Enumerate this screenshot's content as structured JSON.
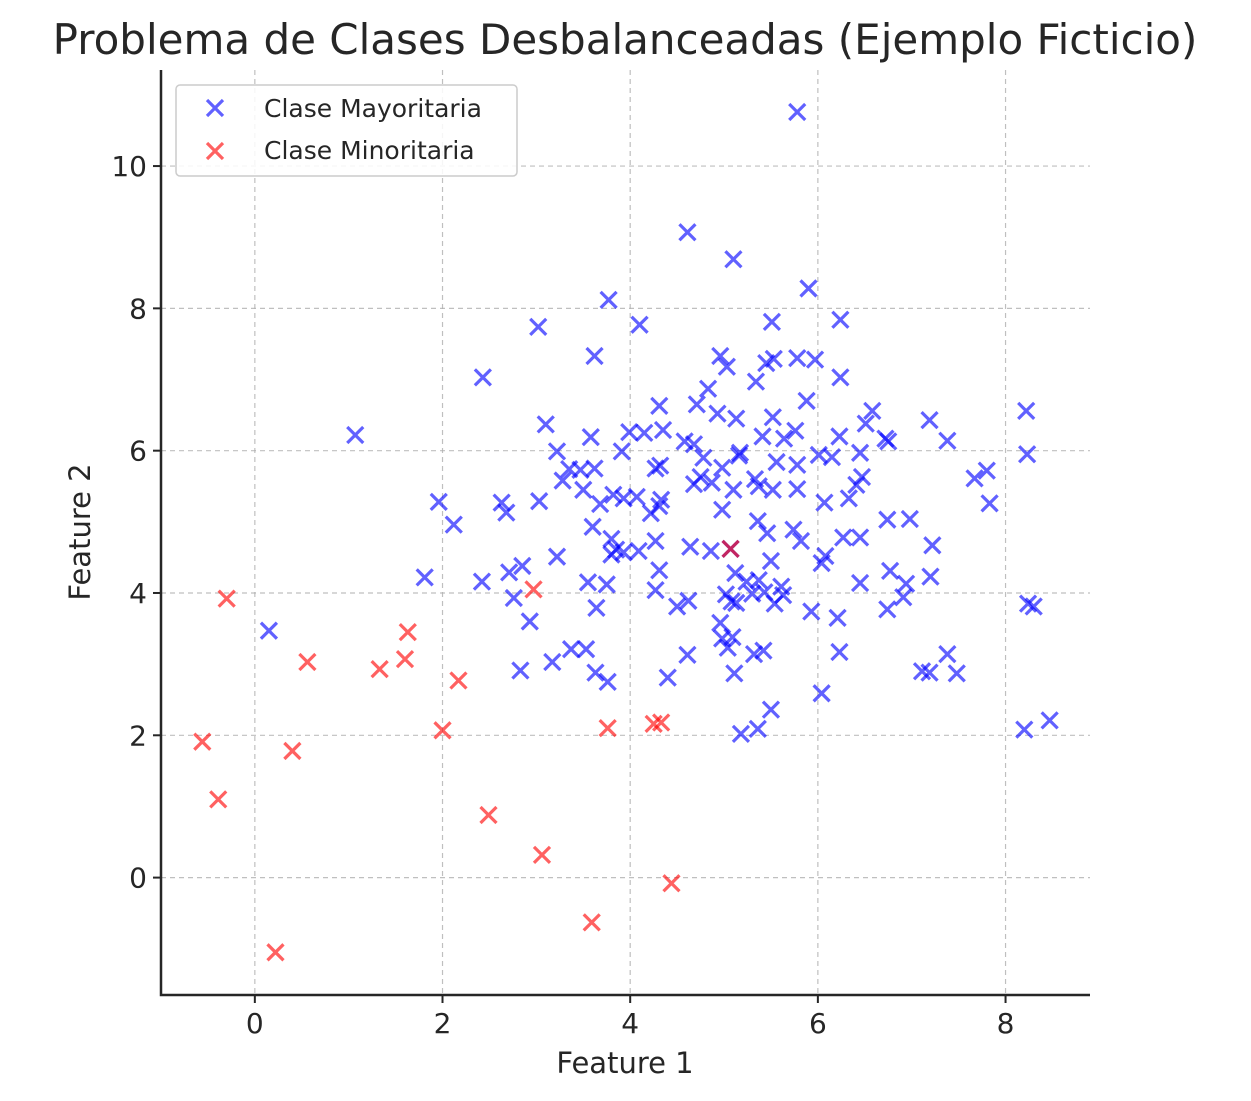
{
  "chart_data": {
    "type": "scatter",
    "title": "Problema de Clases Desbalanceadas (Ejemplo Ficticio)",
    "xlabel": "Feature 1",
    "ylabel": "Feature 2",
    "xlim": [
      -1.0,
      8.9
    ],
    "ylim": [
      -1.65,
      11.35
    ],
    "xticks": [
      0,
      2,
      4,
      6,
      8
    ],
    "yticks": [
      0,
      2,
      4,
      6,
      8,
      10
    ],
    "grid": true,
    "legend_position": "top-left",
    "marker": "x",
    "series": [
      {
        "name": "Clase Mayoritaria",
        "color": "#0000ff",
        "points": [
          [
            5.78,
            10.76
          ],
          [
            4.61,
            9.07
          ],
          [
            5.1,
            8.69
          ],
          [
            3.77,
            8.12
          ],
          [
            5.9,
            8.28
          ],
          [
            3.02,
            7.74
          ],
          [
            4.1,
            7.77
          ],
          [
            5.51,
            7.81
          ],
          [
            6.24,
            7.84
          ],
          [
            2.43,
            7.03
          ],
          [
            3.62,
            7.33
          ],
          [
            4.96,
            7.33
          ],
          [
            5.03,
            7.18
          ],
          [
            5.45,
            7.23
          ],
          [
            5.53,
            7.29
          ],
          [
            5.78,
            7.3
          ],
          [
            5.97,
            7.28
          ],
          [
            6.24,
            7.03
          ],
          [
            5.34,
            6.97
          ],
          [
            4.83,
            6.87
          ],
          [
            4.31,
            6.63
          ],
          [
            4.71,
            6.65
          ],
          [
            4.93,
            6.52
          ],
          [
            5.13,
            6.45
          ],
          [
            5.52,
            6.47
          ],
          [
            5.88,
            6.7
          ],
          [
            6.58,
            6.56
          ],
          [
            7.19,
            6.43
          ],
          [
            8.22,
            6.56
          ],
          [
            1.07,
            6.22
          ],
          [
            3.1,
            6.37
          ],
          [
            3.58,
            6.19
          ],
          [
            3.99,
            6.26
          ],
          [
            4.15,
            6.25
          ],
          [
            4.35,
            6.29
          ],
          [
            4.58,
            6.13
          ],
          [
            4.68,
            6.09
          ],
          [
            5.17,
            5.97
          ],
          [
            5.41,
            6.2
          ],
          [
            5.76,
            6.28
          ],
          [
            5.64,
            6.17
          ],
          [
            6.23,
            6.2
          ],
          [
            6.51,
            6.38
          ],
          [
            6.72,
            6.17
          ],
          [
            6.75,
            6.13
          ],
          [
            7.38,
            6.14
          ],
          [
            3.22,
            5.99
          ],
          [
            3.35,
            5.74
          ],
          [
            3.47,
            5.73
          ],
          [
            3.62,
            5.75
          ],
          [
            3.91,
            5.99
          ],
          [
            4.27,
            5.75
          ],
          [
            4.32,
            5.79
          ],
          [
            4.78,
            5.9
          ],
          [
            4.98,
            5.76
          ],
          [
            5.16,
            5.93
          ],
          [
            5.33,
            5.6
          ],
          [
            5.56,
            5.84
          ],
          [
            5.78,
            5.8
          ],
          [
            6.01,
            5.94
          ],
          [
            6.15,
            5.91
          ],
          [
            6.45,
            5.97
          ],
          [
            8.23,
            5.95
          ],
          [
            3.28,
            5.58
          ],
          [
            3.5,
            5.45
          ],
          [
            3.68,
            5.25
          ],
          [
            3.82,
            5.38
          ],
          [
            3.93,
            5.33
          ],
          [
            4.07,
            5.35
          ],
          [
            4.22,
            5.12
          ],
          [
            4.33,
            5.31
          ],
          [
            4.68,
            5.53
          ],
          [
            4.75,
            5.63
          ],
          [
            4.87,
            5.55
          ],
          [
            5.1,
            5.45
          ],
          [
            5.37,
            5.5
          ],
          [
            5.52,
            5.45
          ],
          [
            5.78,
            5.46
          ],
          [
            6.07,
            5.27
          ],
          [
            6.33,
            5.33
          ],
          [
            6.41,
            5.52
          ],
          [
            6.47,
            5.63
          ],
          [
            7.67,
            5.61
          ],
          [
            7.8,
            5.72
          ],
          [
            7.83,
            5.26
          ],
          [
            1.96,
            5.28
          ],
          [
            2.12,
            4.96
          ],
          [
            2.63,
            5.27
          ],
          [
            2.68,
            5.13
          ],
          [
            3.03,
            5.29
          ],
          [
            3.6,
            4.93
          ],
          [
            3.8,
            4.76
          ],
          [
            3.85,
            4.61
          ],
          [
            4.27,
            4.73
          ],
          [
            4.31,
            5.22
          ],
          [
            4.98,
            5.17
          ],
          [
            5.07,
            4.62
          ],
          [
            5.36,
            5.01
          ],
          [
            5.46,
            4.84
          ],
          [
            5.74,
            4.89
          ],
          [
            5.82,
            4.73
          ],
          [
            6.08,
            4.52
          ],
          [
            6.27,
            4.78
          ],
          [
            6.45,
            4.78
          ],
          [
            6.74,
            5.03
          ],
          [
            6.98,
            5.04
          ],
          [
            7.22,
            4.67
          ],
          [
            2.71,
            4.29
          ],
          [
            2.85,
            4.38
          ],
          [
            3.22,
            4.51
          ],
          [
            3.55,
            4.15
          ],
          [
            3.64,
            3.79
          ],
          [
            3.75,
            4.12
          ],
          [
            3.8,
            4.54
          ],
          [
            3.93,
            4.57
          ],
          [
            4.09,
            4.59
          ],
          [
            4.31,
            4.32
          ],
          [
            4.64,
            4.65
          ],
          [
            4.86,
            4.59
          ],
          [
            5.12,
            4.28
          ],
          [
            5.24,
            4.16
          ],
          [
            5.37,
            4.18
          ],
          [
            5.5,
            4.45
          ],
          [
            5.61,
            4.09
          ],
          [
            6.04,
            4.42
          ],
          [
            6.45,
            4.14
          ],
          [
            6.77,
            4.31
          ],
          [
            6.94,
            4.13
          ],
          [
            7.2,
            4.23
          ],
          [
            1.81,
            4.22
          ],
          [
            2.42,
            4.16
          ],
          [
            2.76,
            3.93
          ],
          [
            2.93,
            3.6
          ],
          [
            3.37,
            3.21
          ],
          [
            3.53,
            3.21
          ],
          [
            4.27,
            4.04
          ],
          [
            4.5,
            3.81
          ],
          [
            4.62,
            3.89
          ],
          [
            5.02,
            3.98
          ],
          [
            5.08,
            3.88
          ],
          [
            5.13,
            3.86
          ],
          [
            5.3,
            3.99
          ],
          [
            5.43,
            4.01
          ],
          [
            5.54,
            3.85
          ],
          [
            5.63,
            3.97
          ],
          [
            5.93,
            3.74
          ],
          [
            6.21,
            3.65
          ],
          [
            6.74,
            3.77
          ],
          [
            6.91,
            3.94
          ],
          [
            8.24,
            3.85
          ],
          [
            8.3,
            3.81
          ],
          [
            0.15,
            3.47
          ],
          [
            2.83,
            2.91
          ],
          [
            3.17,
            3.03
          ],
          [
            3.63,
            2.88
          ],
          [
            3.76,
            2.75
          ],
          [
            4.4,
            2.81
          ],
          [
            4.61,
            3.13
          ],
          [
            4.96,
            3.58
          ],
          [
            4.98,
            3.36
          ],
          [
            5.04,
            3.23
          ],
          [
            5.09,
            3.38
          ],
          [
            5.11,
            2.87
          ],
          [
            5.32,
            3.14
          ],
          [
            5.42,
            3.19
          ],
          [
            6.23,
            3.17
          ],
          [
            7.11,
            2.9
          ],
          [
            7.38,
            3.14
          ],
          [
            7.19,
            2.88
          ],
          [
            7.48,
            2.87
          ],
          [
            5.18,
            2.02
          ],
          [
            5.36,
            2.09
          ],
          [
            5.5,
            2.36
          ],
          [
            6.04,
            2.59
          ],
          [
            8.2,
            2.08
          ],
          [
            8.47,
            2.21
          ]
        ]
      },
      {
        "name": "Clase Minoritaria",
        "color": "#ff0000",
        "points": [
          [
            -0.3,
            3.92
          ],
          [
            1.63,
            3.45
          ],
          [
            0.56,
            3.03
          ],
          [
            1.33,
            2.93
          ],
          [
            1.6,
            3.07
          ],
          [
            2.17,
            2.77
          ],
          [
            2.97,
            4.05
          ],
          [
            5.07,
            4.62
          ],
          [
            -0.56,
            1.91
          ],
          [
            0.4,
            1.78
          ],
          [
            2.0,
            2.07
          ],
          [
            3.76,
            2.1
          ],
          [
            4.25,
            2.16
          ],
          [
            4.33,
            2.18
          ],
          [
            -0.39,
            1.1
          ],
          [
            2.49,
            0.88
          ],
          [
            3.06,
            0.32
          ],
          [
            4.44,
            -0.08
          ],
          [
            3.59,
            -0.63
          ],
          [
            0.22,
            -1.05
          ]
        ]
      }
    ]
  }
}
